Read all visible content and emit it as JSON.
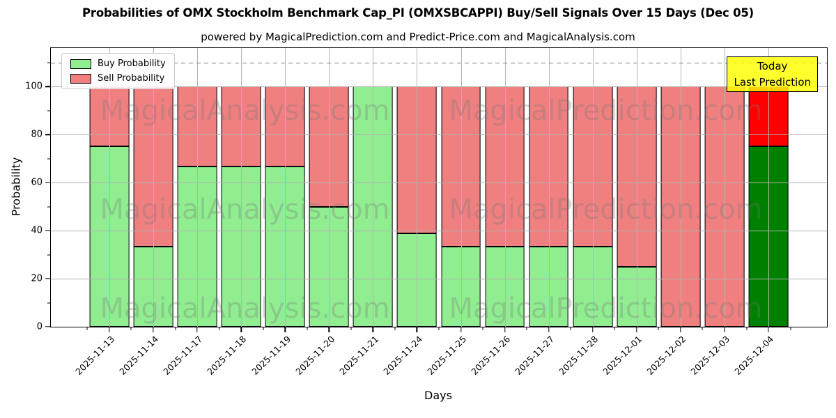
{
  "title": "Probabilities of OMX Stockholm Benchmark Cap_PI (OMXSBCAPPI) Buy/Sell Signals Over 15 Days (Dec 05)",
  "subtitle": "powered by MagicalPrediction.com and Predict-Price.com and MagicalAnalysis.com",
  "legend": {
    "buy": "Buy Probability",
    "sell": "Sell Probability"
  },
  "annotation": {
    "line1": "Today",
    "line2": "Last Prediction"
  },
  "watermarks": {
    "left": "MagicalAnalysis.com",
    "right": "MagicalPrediction.com"
  },
  "chart_data": {
    "type": "bar",
    "stacked": true,
    "title": "Probabilities of OMX Stockholm Benchmark Cap_PI (OMXSBCAPPI) Buy/Sell Signals Over 15 Days (Dec 05)",
    "xlabel": "Days",
    "ylabel": "Probability",
    "categories": [
      "2025-11-13",
      "2025-11-14",
      "2025-11-17",
      "2025-11-18",
      "2025-11-19",
      "2025-11-20",
      "2025-11-21",
      "2025-11-24",
      "2025-11-25",
      "2025-11-26",
      "2025-11-27",
      "2025-11-28",
      "2025-12-01",
      "2025-12-02",
      "2025-12-03",
      "2025-12-04"
    ],
    "series": [
      {
        "name": "Buy Probability",
        "values": [
          75,
          33.33,
          66.67,
          66.67,
          66.67,
          50,
          100,
          39,
          33.33,
          33.33,
          33.33,
          33.33,
          25,
          0,
          0,
          75
        ]
      },
      {
        "name": "Sell Probability",
        "values": [
          25,
          66.67,
          33.33,
          33.33,
          33.33,
          50,
          0,
          61,
          66.67,
          66.67,
          66.67,
          66.67,
          75,
          100,
          100,
          25
        ]
      }
    ],
    "bar_colors": {
      "buy": "#90ee90",
      "sell": "#f08080"
    },
    "today_colors": {
      "buy": "#008000",
      "sell": "#ff0000"
    },
    "ylim": [
      0,
      116
    ],
    "yticks": [
      0,
      20,
      40,
      60,
      80,
      100
    ],
    "yticks_minor": [
      10,
      30,
      50,
      70,
      90,
      110
    ],
    "dashed_line_y": 110,
    "grid": true,
    "legend_position": "upper left",
    "x_tick_rotation": 45
  }
}
